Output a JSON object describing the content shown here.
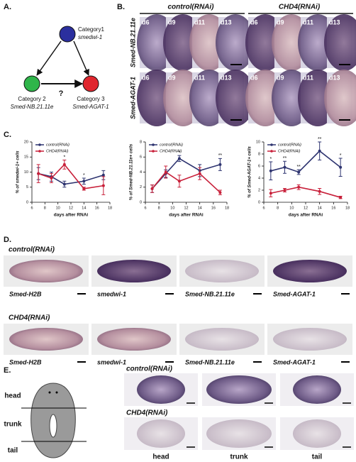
{
  "panel_labels": [
    "A.",
    "B.",
    "C.",
    "D.",
    "E."
  ],
  "lineage": {
    "top": {
      "title": "Category1",
      "gene": "smedwi-1"
    },
    "left": {
      "title": "Category 2",
      "gene": "Smed-NB.21.11e"
    },
    "right": {
      "title": "Category 3",
      "gene": "Smed-AGAT-1"
    },
    "question": "?"
  },
  "in_situ_timecourse": {
    "groups": [
      "control(RNAi)",
      "CHD4(RNAi)"
    ],
    "rows": [
      "Smed-NB.21.11e",
      "Smed-AGAT-1"
    ],
    "days": [
      "d6",
      "d9",
      "d11",
      "d13"
    ]
  },
  "chart_data": [
    {
      "type": "line",
      "ylabel": "% of smedwi-1+ cells",
      "xlabel": "days after RNAi",
      "x": [
        7,
        9,
        11,
        14,
        17
      ],
      "xlim": [
        6,
        18
      ],
      "xticks": [
        6,
        8,
        10,
        12,
        14,
        16,
        18
      ],
      "ylim": [
        0,
        20
      ],
      "yticks": [
        0,
        5,
        10,
        15,
        20
      ],
      "legend": "upper left",
      "series": [
        {
          "name": "control(RNAi)",
          "color": "#2e3470",
          "values": [
            9.5,
            8.5,
            6,
            7,
            9
          ],
          "errors": [
            2,
            1.5,
            1,
            1,
            1.5
          ]
        },
        {
          "name": "CHD4(RNAi)",
          "color": "#c8203a",
          "values": [
            9.5,
            8,
            12.5,
            4.5,
            5.5
          ],
          "errors": [
            3,
            1.5,
            1.5,
            0.5,
            3
          ]
        }
      ],
      "significance": [
        null,
        null,
        "*",
        "*",
        null
      ]
    },
    {
      "type": "line",
      "ylabel": "% of Smed-NB.21.11e+ cells",
      "xlabel": "days after RNAi",
      "x": [
        7,
        9,
        11,
        14,
        17
      ],
      "xlim": [
        6,
        18
      ],
      "xticks": [
        6,
        8,
        10,
        12,
        14,
        16,
        18
      ],
      "ylim": [
        0,
        8
      ],
      "yticks": [
        0,
        2,
        4,
        6,
        8
      ],
      "legend": "upper left",
      "series": [
        {
          "name": "control(RNAi)",
          "color": "#2e3470",
          "values": [
            1.8,
            3.8,
            5.8,
            4.2,
            5.0
          ],
          "errors": [
            0.5,
            0.5,
            0.4,
            0.8,
            0.8
          ]
        },
        {
          "name": "CHD4(RNAi)",
          "color": "#c8203a",
          "values": [
            1.8,
            4.0,
            2.8,
            3.8,
            1.3
          ],
          "errors": [
            0.5,
            0.8,
            0.8,
            0.8,
            0.3
          ]
        }
      ],
      "significance": [
        null,
        null,
        "*",
        null,
        "**"
      ]
    },
    {
      "type": "line",
      "ylabel": "% of Smed-AGAT-1+ cells",
      "xlabel": "days after RNAi",
      "x": [
        7,
        9,
        11,
        14,
        17
      ],
      "xlim": [
        6,
        18
      ],
      "xticks": [
        6,
        8,
        10,
        12,
        14,
        16,
        18
      ],
      "ylim": [
        0,
        10
      ],
      "yticks": [
        0,
        2,
        4,
        6,
        8,
        10
      ],
      "legend": "upper left",
      "series": [
        {
          "name": "control(RNAi)",
          "color": "#2e3470",
          "values": [
            5.2,
            5.8,
            5.0,
            8.5,
            5.8
          ],
          "errors": [
            1.5,
            1,
            0.4,
            1.5,
            1.5
          ]
        },
        {
          "name": "CHD4(RNAi)",
          "color": "#c8203a",
          "values": [
            1.5,
            2.0,
            2.5,
            1.8,
            0.8
          ],
          "errors": [
            0.6,
            0.3,
            0.4,
            0.5,
            0.2
          ]
        }
      ],
      "significance": [
        "*",
        "**",
        "**",
        "**",
        "*"
      ]
    }
  ],
  "marker_panel": {
    "groups": [
      "control(RNAi)",
      "CHD4(RNAi)"
    ],
    "genes": [
      "Smed-H2B",
      "smedwi-1",
      "Smed-NB.21.11e",
      "Smed-AGAT-1"
    ]
  },
  "regeneration": {
    "regions": [
      "head",
      "trunk",
      "tail"
    ],
    "groups": [
      "control(RNAi)",
      "CHD4(RNAi)"
    ]
  }
}
